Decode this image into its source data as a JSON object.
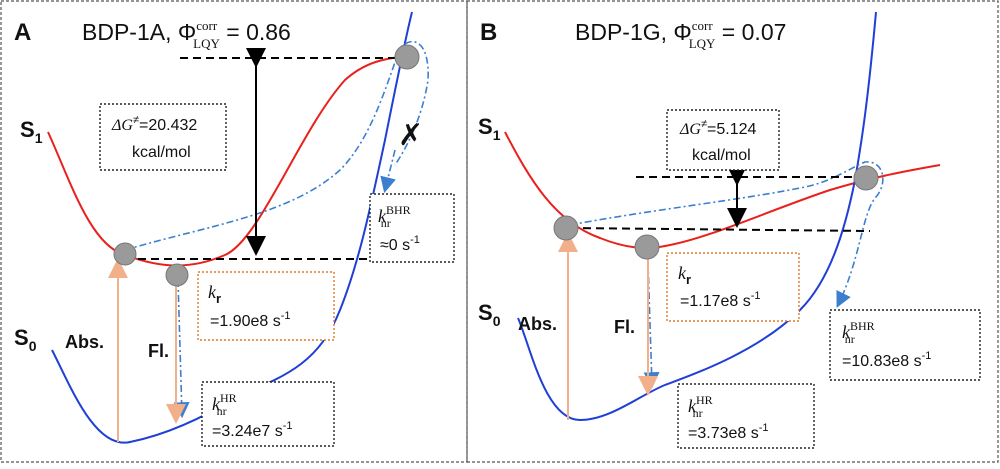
{
  "panels": [
    {
      "letter": "A",
      "title_prefix": "BDP-1A, Φ",
      "phi_sup": "corr",
      "phi_sub": "LQY",
      "title_value": " = 0.86",
      "s1_label": "S",
      "s1_sub": "1",
      "s0_label": "S",
      "s0_sub": "0",
      "abs_label": "Abs.",
      "fl_label": "Fl.",
      "dg_line1_prefix": "ΔG",
      "dg_line1_sup": "≠",
      "dg_line1_value": "=20.432",
      "dg_line2": "kcal/mol",
      "kr_k": "k",
      "kr_sub": "r",
      "kr_value_base": "=1.90e8 s",
      "kr_value_sup": "-1",
      "khr_k": "k",
      "khr_sup": "HR",
      "khr_sub": "nr",
      "khr_value_base": "=3.24e7 s",
      "khr_value_sup": "-1",
      "kbhr_k": "k",
      "kbhr_sup": "BHR",
      "kbhr_sub": "nr",
      "kbhr_value_base": "≈0 s",
      "kbhr_value_sup": "-1"
    },
    {
      "letter": "B",
      "title_prefix": "BDP-1G, Φ",
      "phi_sup": "corr",
      "phi_sub": "LQY",
      "title_value": " = 0.07",
      "s1_label": "S",
      "s1_sub": "1",
      "s0_label": "S",
      "s0_sub": "0",
      "abs_label": "Abs.",
      "fl_label": "Fl.",
      "dg_line1_prefix": "ΔG",
      "dg_line1_sup": "≠",
      "dg_line1_value": "=5.124",
      "dg_line2": "kcal/mol",
      "kr_k": "k",
      "kr_sub": "r",
      "kr_value_base": "=1.17e8 s",
      "kr_value_sup": "-1",
      "khr_k": "k",
      "khr_sup": "HR",
      "khr_sub": "nr",
      "khr_value_base": "=3.73e8 s",
      "khr_value_sup": "-1",
      "kbhr_k": "k",
      "kbhr_sup": "BHR",
      "kbhr_sub": "nr",
      "kbhr_value_base": "=10.83e8 s",
      "kbhr_value_sup": "-1"
    }
  ],
  "colors": {
    "s1_curve": "#e8211d",
    "s0_curve": "#1f3fd6",
    "pathway": "#3d7fcf",
    "absorption": "#f2b08a",
    "kr_box_border": "#e07a2a",
    "node": "#9a9a9a"
  }
}
